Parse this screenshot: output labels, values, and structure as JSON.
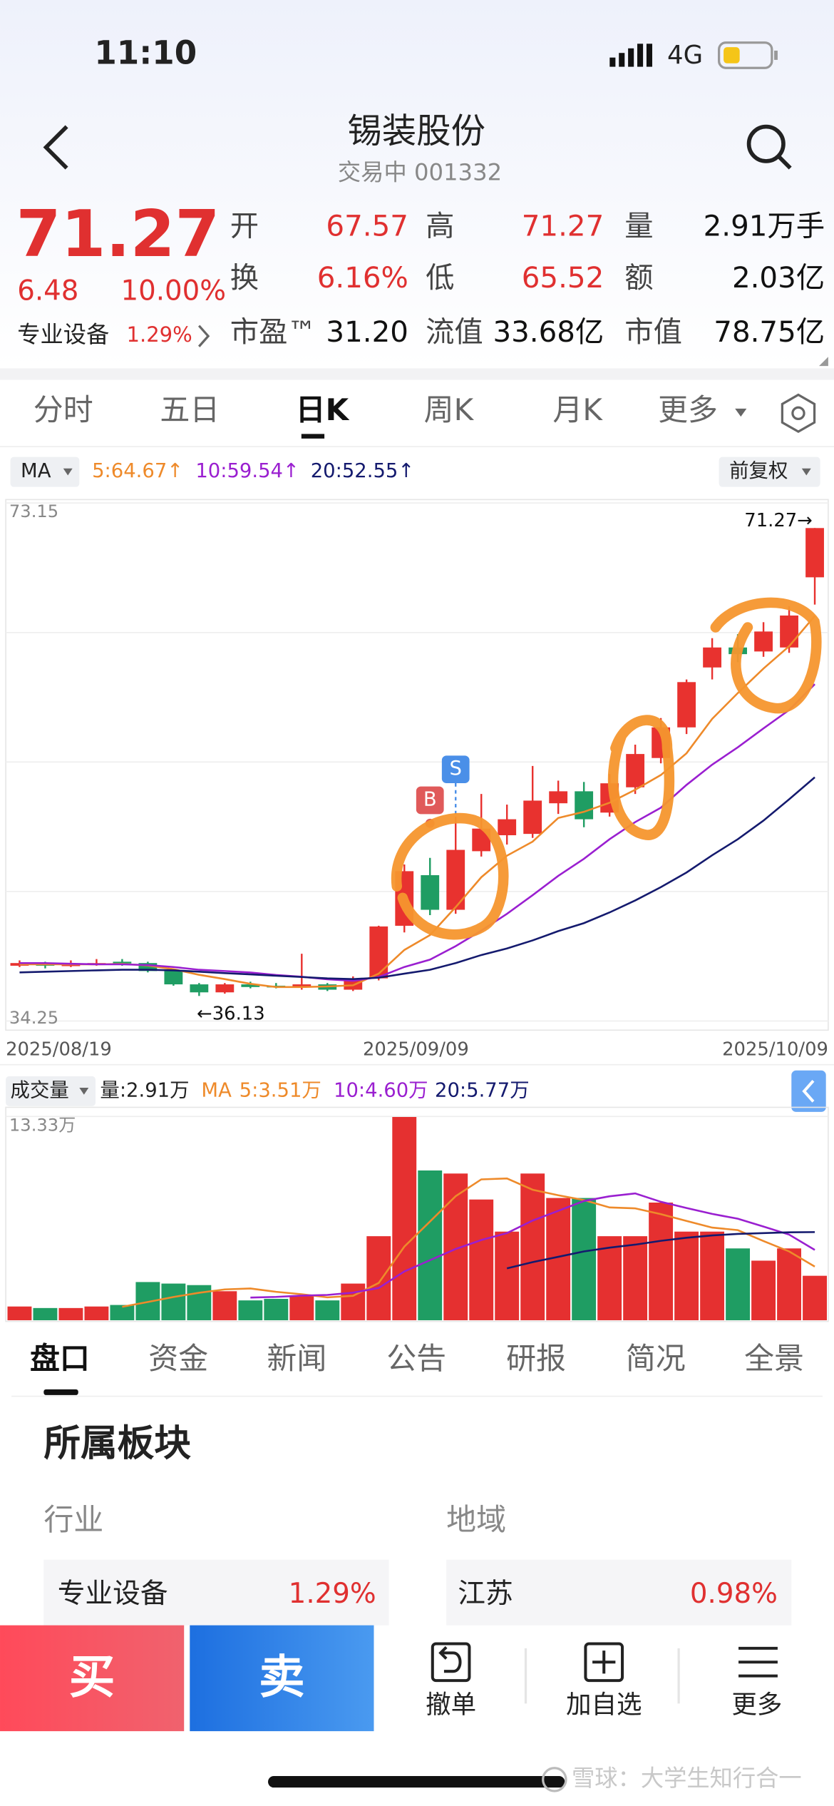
{
  "status": {
    "time": "11:10",
    "network": "4G"
  },
  "header": {
    "title": "锡装股份",
    "subtitle": "交易中 001332"
  },
  "quote": {
    "price": "71.27",
    "change": "6.48",
    "change_pct": "10.00%",
    "sector": "专业设备",
    "sector_pct": "1.29%",
    "fields": [
      {
        "label": "开",
        "value": "67.57"
      },
      {
        "label": "高",
        "value": "71.27"
      },
      {
        "label": "量",
        "value": "2.91万手"
      },
      {
        "label": "换",
        "value": "6.16%"
      },
      {
        "label": "低",
        "value": "65.52"
      },
      {
        "label": "额",
        "value": "2.03亿"
      },
      {
        "label": "市盈™",
        "value": "31.20"
      },
      {
        "label": "流值",
        "value": "33.68亿"
      },
      {
        "label": "市值",
        "value": "78.75亿"
      }
    ]
  },
  "period_tabs": [
    "分时",
    "五日",
    "日K",
    "周K",
    "月K",
    "更多"
  ],
  "ma_bar": {
    "indicator": "MA",
    "adjust": "前复权"
  },
  "volume_bar": {
    "indicator": "成交量",
    "volume": "量:2.91万",
    "ma": "MA"
  },
  "chart_data": [
    {
      "type": "candlestick",
      "categories": [
        "2025/08/19",
        null,
        null,
        null,
        null,
        null,
        null,
        null,
        null,
        null,
        null,
        null,
        null,
        null,
        null,
        "2025/09/09",
        null,
        null,
        null,
        null,
        null,
        null,
        null,
        null,
        null,
        null,
        null,
        null,
        null,
        null,
        null,
        "2025/10/09"
      ],
      "open": [
        38.4,
        38.6,
        38.4,
        38.5,
        38.7,
        38.6,
        38.0,
        37.0,
        36.4,
        37.0,
        36.9,
        36.8,
        37.0,
        36.6,
        37.45,
        41.4,
        45.2,
        42.6,
        47.0,
        48.2,
        48.3,
        50.6,
        51.5,
        49.9,
        51.8,
        54.0,
        56.3,
        60.8,
        62.3,
        62.0,
        62.3,
        67.57
      ],
      "high": [
        38.8,
        38.7,
        38.8,
        38.9,
        38.9,
        38.7,
        38.1,
        37.1,
        37.1,
        37.2,
        37.1,
        39.3,
        37.1,
        37.6,
        41.4,
        46.0,
        46.5,
        49.6,
        51.3,
        50.5,
        53.4,
        52.3,
        52.2,
        52.8,
        55.0,
        57.0,
        59.9,
        63.0,
        63.3,
        64.2,
        65.4,
        71.27
      ],
      "low": [
        38.3,
        38.2,
        38.3,
        38.4,
        38.4,
        37.9,
        36.9,
        36.13,
        36.3,
        36.7,
        36.7,
        36.6,
        36.5,
        36.5,
        37.3,
        40.9,
        42.2,
        42.3,
        46.6,
        47.5,
        48.0,
        49.8,
        48.8,
        49.6,
        51.3,
        53.6,
        55.8,
        59.9,
        61.2,
        61.6,
        61.9,
        65.52
      ],
      "close": [
        38.6,
        38.4,
        38.5,
        38.6,
        38.6,
        38.0,
        37.0,
        36.4,
        37.0,
        36.8,
        36.8,
        37.0,
        36.6,
        37.45,
        41.35,
        45.5,
        42.6,
        47.1,
        48.7,
        49.4,
        50.8,
        51.5,
        49.4,
        52.1,
        54.3,
        56.3,
        59.7,
        62.3,
        61.8,
        63.5,
        64.7,
        71.27
      ],
      "up_color": "#e8322f",
      "down_color": "#1f9d63",
      "ylim": [
        34.25,
        73.15
      ],
      "yticks": [
        34.25,
        73.15
      ],
      "series": [
        {
          "name": "5:64.67↑",
          "color": "#ee8a2a",
          "values": [
            38.5,
            38.5,
            38.5,
            38.5,
            38.54,
            38.42,
            38.14,
            37.72,
            37.4,
            37.04,
            36.8,
            36.8,
            36.84,
            36.93,
            37.8,
            39.58,
            40.7,
            42.8,
            45.05,
            46.66,
            47.72,
            49.5,
            49.96,
            50.64,
            51.62,
            52.72,
            54.36,
            56.94,
            58.88,
            60.72,
            62.4,
            64.67
          ]
        },
        {
          "name": "10:59.54↑",
          "color": "#9a1fd0",
          "values": [
            38.6,
            38.6,
            38.55,
            38.5,
            38.5,
            38.45,
            38.3,
            38.1,
            38.0,
            37.89,
            37.71,
            37.57,
            37.38,
            37.27,
            37.55,
            38.3,
            38.86,
            39.87,
            41.04,
            42.3,
            43.7,
            45.15,
            46.43,
            47.9,
            49.19,
            50.27,
            51.98,
            53.5,
            54.81,
            56.22,
            57.61,
            59.54
          ]
        },
        {
          "name": "20:52.55↑",
          "color": "#141a6e",
          "values": [
            37.9,
            37.95,
            38.0,
            38.05,
            38.1,
            38.1,
            38.05,
            37.95,
            37.85,
            37.75,
            37.65,
            37.55,
            37.45,
            37.4,
            37.5,
            37.8,
            38.1,
            38.6,
            39.2,
            39.7,
            40.3,
            41.0,
            41.6,
            42.4,
            43.3,
            44.3,
            45.4,
            46.7,
            47.9,
            49.3,
            50.9,
            52.55
          ]
        }
      ],
      "annotations": [
        "71.27→",
        "←36.13"
      ],
      "markers": [
        "B",
        "S"
      ]
    },
    {
      "type": "bar",
      "values": [
        0.9,
        0.8,
        0.8,
        0.9,
        1.0,
        2.5,
        2.4,
        2.3,
        1.9,
        1.3,
        1.4,
        1.6,
        1.3,
        2.4,
        5.5,
        13.3,
        9.8,
        9.6,
        7.9,
        5.8,
        9.6,
        8.0,
        8.0,
        5.5,
        5.5,
        7.7,
        5.8,
        5.8,
        4.7,
        3.9,
        4.7,
        2.91
      ],
      "colors": [
        "#e53030",
        "#1f9d63",
        "#e53030",
        "#e53030",
        "#1f9d63",
        "#1f9d63",
        "#1f9d63",
        "#1f9d63",
        "#e53030",
        "#1f9d63",
        "#1f9d63",
        "#e53030",
        "#1f9d63",
        "#e53030",
        "#e53030",
        "#e53030",
        "#1f9d63",
        "#e53030",
        "#e53030",
        "#e53030",
        "#e53030",
        "#e53030",
        "#1f9d63",
        "#e53030",
        "#e53030",
        "#e53030",
        "#e53030",
        "#e53030",
        "#1f9d63",
        "#e53030",
        "#e53030",
        "#e53030"
      ],
      "ylim": [
        0,
        13.33
      ],
      "yticks": [
        {
          "value": 13.33,
          "label": "13.33万"
        }
      ],
      "series": [
        {
          "name": "5:3.51万",
          "color": "#ee8a2a",
          "values": [
            null,
            null,
            null,
            null,
            0.88,
            1.2,
            1.52,
            1.8,
            2.02,
            2.08,
            1.86,
            1.7,
            1.5,
            1.6,
            2.44,
            4.82,
            6.46,
            8.12,
            9.22,
            9.28,
            8.54,
            8.18,
            7.86,
            7.38,
            7.32,
            6.94,
            6.5,
            6.06,
            5.9,
            5.18,
            4.5,
            3.51
          ]
        },
        {
          "name": "10:4.60万",
          "color": "#9a1fd0",
          "values": [
            null,
            null,
            null,
            null,
            null,
            null,
            null,
            null,
            null,
            1.48,
            1.53,
            1.61,
            1.66,
            1.81,
            2.11,
            3.19,
            3.93,
            4.66,
            5.25,
            5.7,
            6.52,
            7.16,
            7.8,
            8.11,
            8.3,
            7.75,
            7.34,
            6.96,
            6.64,
            6.13,
            5.6,
            4.6
          ]
        },
        {
          "name": "20:5.77万",
          "color": "#141a6e",
          "values": [
            null,
            null,
            null,
            null,
            null,
            null,
            null,
            null,
            null,
            null,
            null,
            null,
            null,
            null,
            null,
            null,
            null,
            null,
            null,
            3.4,
            3.8,
            4.15,
            4.5,
            4.75,
            4.95,
            5.2,
            5.4,
            5.55,
            5.65,
            5.7,
            5.75,
            5.77
          ]
        }
      ]
    }
  ],
  "info_tabs": [
    "盘口",
    "资金",
    "新闻",
    "公告",
    "研报",
    "简况",
    "全景"
  ],
  "section": {
    "title": "所属板块",
    "industry_label": "行业",
    "region_label": "地域",
    "industry": "专业设备",
    "industry_pct": "1.29%",
    "region": "江苏",
    "region_pct": "0.98%"
  },
  "bottom_bar": {
    "buy": "买",
    "sell": "卖",
    "actions": [
      "撤单",
      "加自选",
      "更多"
    ]
  },
  "watermark": "雪球：大学生知行合一"
}
